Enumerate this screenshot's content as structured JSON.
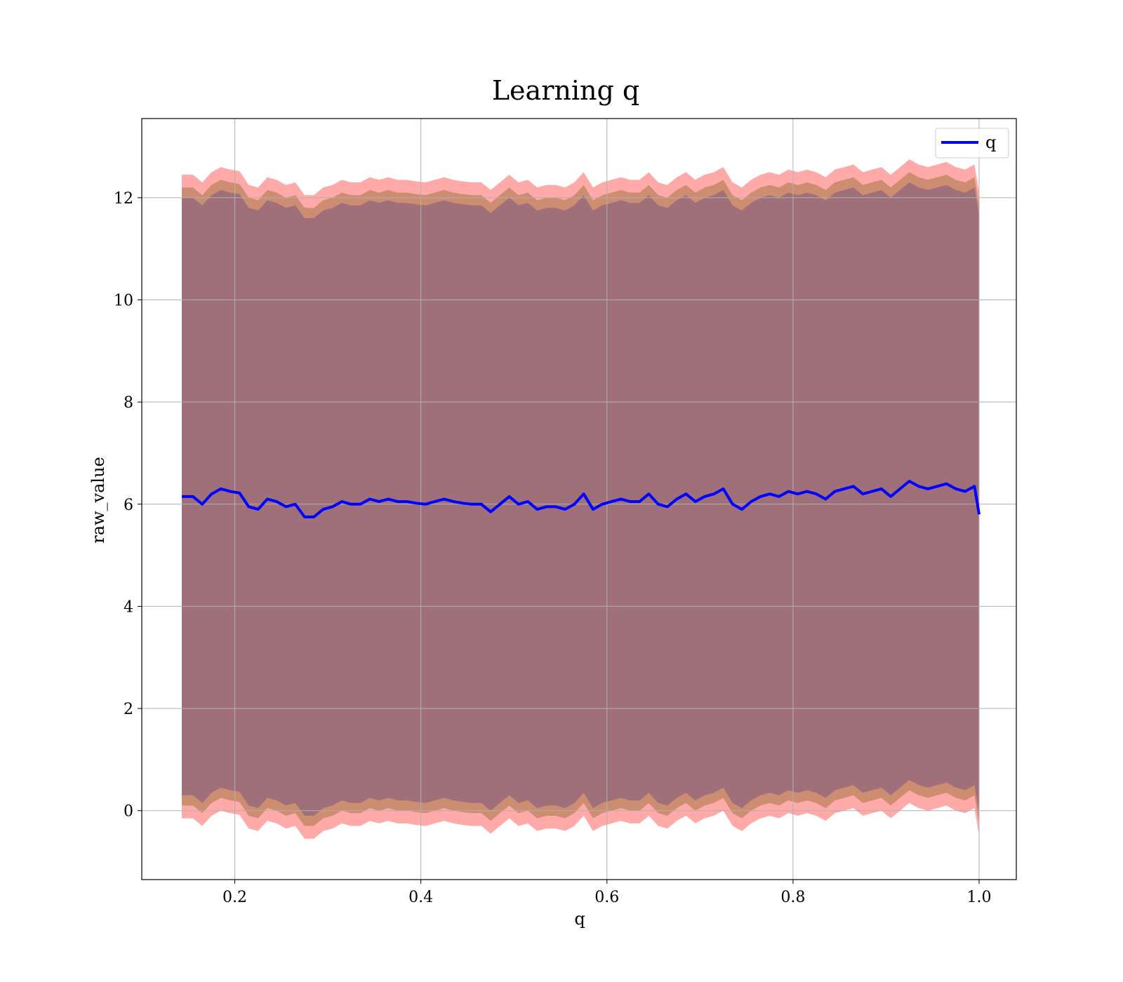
{
  "chart_data": {
    "type": "line",
    "title": "Learning q",
    "xlabel": "q",
    "ylabel": "raw_value",
    "xlim": [
      0.1,
      1.04
    ],
    "ylim": [
      -1.35,
      13.55
    ],
    "xticks": [
      0.2,
      0.4,
      0.6,
      0.8,
      1.0
    ],
    "xtick_labels": [
      "0.2",
      "0.4",
      "0.6",
      "0.8",
      "1.0"
    ],
    "yticks": [
      0,
      2,
      4,
      6,
      8,
      10,
      12
    ],
    "ytick_labels": [
      "0",
      "2",
      "4",
      "6",
      "8",
      "10",
      "12"
    ],
    "grid": true,
    "legend": {
      "position": "top-right",
      "entries": [
        "q"
      ]
    },
    "colors": {
      "line": "#0000ff",
      "band_outer": "#ff9a9a",
      "band_mid": "#c68a6a",
      "band_inner": "#a0707a"
    },
    "band_widths": {
      "outer": 6.3,
      "mid": 6.05,
      "inner": 5.85
    },
    "series": [
      {
        "name": "q",
        "x": [
          0.143,
          0.155,
          0.165,
          0.175,
          0.185,
          0.195,
          0.205,
          0.215,
          0.225,
          0.235,
          0.245,
          0.255,
          0.265,
          0.275,
          0.285,
          0.295,
          0.305,
          0.315,
          0.325,
          0.335,
          0.345,
          0.355,
          0.365,
          0.375,
          0.385,
          0.395,
          0.405,
          0.415,
          0.425,
          0.435,
          0.445,
          0.455,
          0.465,
          0.475,
          0.485,
          0.495,
          0.505,
          0.515,
          0.525,
          0.535,
          0.545,
          0.555,
          0.565,
          0.575,
          0.585,
          0.595,
          0.605,
          0.615,
          0.625,
          0.635,
          0.645,
          0.655,
          0.665,
          0.675,
          0.685,
          0.695,
          0.705,
          0.715,
          0.725,
          0.735,
          0.745,
          0.755,
          0.765,
          0.775,
          0.785,
          0.795,
          0.805,
          0.815,
          0.825,
          0.835,
          0.845,
          0.855,
          0.865,
          0.875,
          0.885,
          0.895,
          0.905,
          0.915,
          0.925,
          0.935,
          0.945,
          0.955,
          0.965,
          0.975,
          0.985,
          0.995,
          1.0
        ],
        "y": [
          6.15,
          6.15,
          6.0,
          6.2,
          6.3,
          6.25,
          6.22,
          5.95,
          5.9,
          6.1,
          6.05,
          5.95,
          6.0,
          5.75,
          5.75,
          5.9,
          5.95,
          6.05,
          6.0,
          6.0,
          6.1,
          6.05,
          6.1,
          6.05,
          6.05,
          6.02,
          6.0,
          6.05,
          6.1,
          6.05,
          6.02,
          6.0,
          6.0,
          5.85,
          6.0,
          6.15,
          6.0,
          6.05,
          5.9,
          5.95,
          5.95,
          5.9,
          6.0,
          6.2,
          5.9,
          6.0,
          6.05,
          6.1,
          6.05,
          6.05,
          6.2,
          6.0,
          5.95,
          6.1,
          6.2,
          6.05,
          6.15,
          6.2,
          6.3,
          6.0,
          5.9,
          6.05,
          6.15,
          6.2,
          6.15,
          6.25,
          6.2,
          6.25,
          6.2,
          6.1,
          6.25,
          6.3,
          6.35,
          6.2,
          6.25,
          6.3,
          6.15,
          6.3,
          6.45,
          6.35,
          6.3,
          6.35,
          6.4,
          6.3,
          6.25,
          6.35,
          5.8
        ]
      }
    ]
  }
}
